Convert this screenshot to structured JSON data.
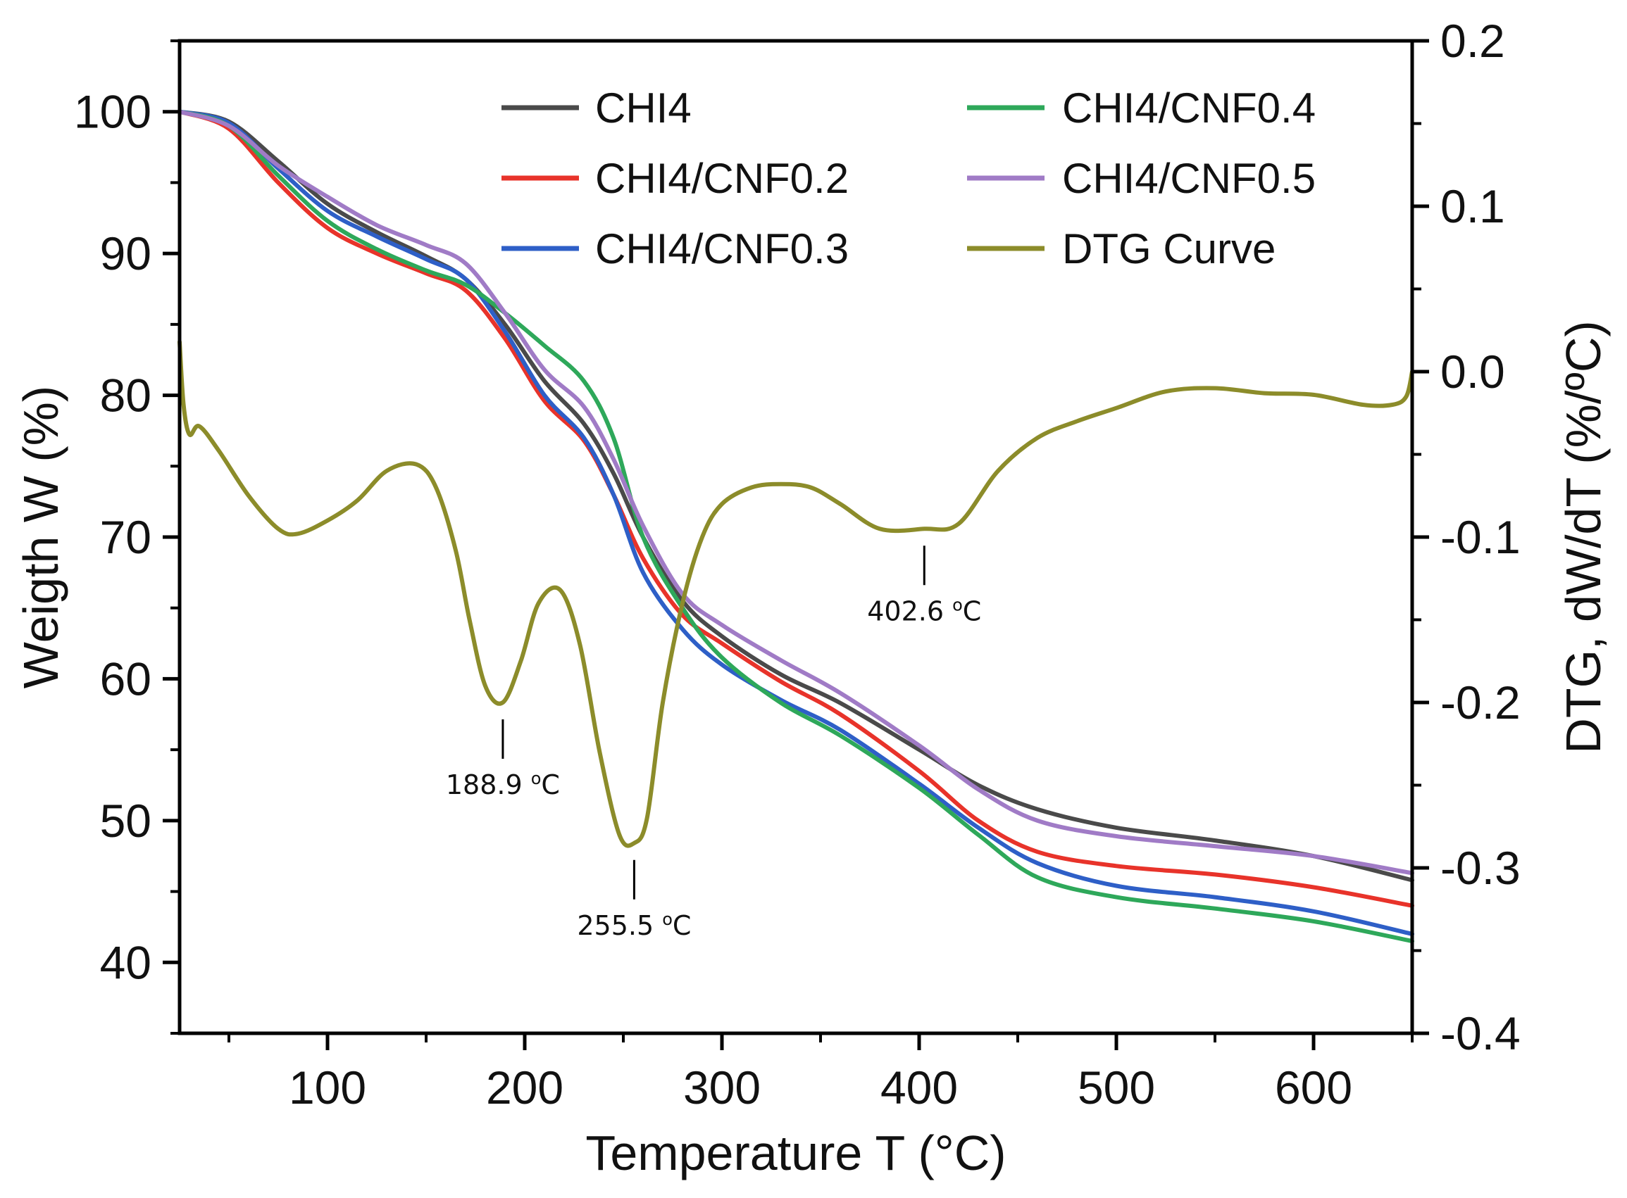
{
  "chart_data": {
    "type": "line",
    "title": "",
    "xlabel": "Temperature T (°C)",
    "ylabel_left": "Weigth W (%)",
    "ylabel_right": "DTG, dW/dT (%/ºC)",
    "xlim": [
      25,
      650
    ],
    "ylim_left": [
      35,
      105
    ],
    "ylim_right": [
      -0.4,
      0.2
    ],
    "xticks": [
      100,
      200,
      300,
      400,
      500,
      600
    ],
    "xtick_labels": [
      "100",
      "200",
      "300",
      "400",
      "500",
      "600"
    ],
    "yticks_left": [
      40,
      50,
      60,
      70,
      80,
      90,
      100
    ],
    "ytick_labels_left": [
      "40",
      "50",
      "60",
      "70",
      "80",
      "90",
      "100"
    ],
    "yticks_right": [
      -0.4,
      -0.3,
      -0.2,
      -0.1,
      0.0,
      0.1,
      0.2
    ],
    "ytick_labels_right": [
      "-0.4",
      "-0.3",
      "-0.2",
      "-0.1",
      "0.0",
      "0.1",
      "0.2"
    ],
    "grid": false,
    "legend_position": "top",
    "series": [
      {
        "name": "CHI4",
        "color": "#4a4a4a",
        "axis": "left",
        "x": [
          25,
          50,
          75,
          100,
          125,
          150,
          170,
          190,
          210,
          230,
          245,
          260,
          280,
          300,
          330,
          360,
          400,
          430,
          460,
          500,
          550,
          600,
          650
        ],
        "y": [
          100,
          99.3,
          96.5,
          93.5,
          91.5,
          89.8,
          88.2,
          85.0,
          81.0,
          78.0,
          74.5,
          70.0,
          65.5,
          63.0,
          60.3,
          58.3,
          55.0,
          52.5,
          50.8,
          49.5,
          48.6,
          47.5,
          45.8
        ]
      },
      {
        "name": "CHI4/CNF0.2",
        "color": "#e8332a",
        "axis": "left",
        "x": [
          25,
          50,
          75,
          100,
          125,
          150,
          170,
          190,
          210,
          230,
          245,
          260,
          280,
          300,
          330,
          360,
          400,
          430,
          460,
          500,
          550,
          600,
          650
        ],
        "y": [
          100,
          98.8,
          95.0,
          91.8,
          90.0,
          88.6,
          87.4,
          84.0,
          79.6,
          76.8,
          73.0,
          68.5,
          64.5,
          62.5,
          59.8,
          57.5,
          53.5,
          50.0,
          47.8,
          46.8,
          46.2,
          45.3,
          44.0
        ]
      },
      {
        "name": "CHI4/CNF0.3",
        "color": "#2e5fc7",
        "axis": "left",
        "x": [
          25,
          50,
          75,
          100,
          125,
          150,
          170,
          190,
          210,
          230,
          245,
          260,
          280,
          300,
          330,
          360,
          400,
          430,
          460,
          500,
          550,
          600,
          650
        ],
        "y": [
          100,
          99.2,
          96.0,
          93.0,
          91.2,
          89.6,
          88.2,
          84.5,
          80.0,
          77.0,
          73.0,
          67.5,
          63.5,
          61.0,
          58.5,
          56.4,
          52.6,
          49.5,
          47.0,
          45.4,
          44.6,
          43.6,
          42.0
        ]
      },
      {
        "name": "CHI4/CNF0.4",
        "color": "#2ea85a",
        "axis": "left",
        "x": [
          25,
          50,
          75,
          100,
          125,
          150,
          170,
          190,
          210,
          230,
          245,
          260,
          280,
          300,
          330,
          360,
          400,
          430,
          460,
          500,
          550,
          600,
          650
        ],
        "y": [
          100,
          99.0,
          95.5,
          92.3,
          90.3,
          88.8,
          87.8,
          85.8,
          83.5,
          81.0,
          77.0,
          70.0,
          65.0,
          61.5,
          58.3,
          56.0,
          52.3,
          49.0,
          46.0,
          44.6,
          43.8,
          42.9,
          41.5
        ]
      },
      {
        "name": "CHI4/CNF0.5",
        "color": "#a07bc6",
        "axis": "left",
        "x": [
          25,
          50,
          75,
          100,
          125,
          150,
          170,
          190,
          210,
          230,
          245,
          260,
          280,
          300,
          330,
          360,
          400,
          430,
          460,
          500,
          550,
          600,
          650
        ],
        "y": [
          100,
          99.0,
          96.2,
          94.0,
          92.0,
          90.6,
          89.3,
          85.8,
          81.8,
          79.2,
          75.5,
          70.8,
          66.0,
          63.8,
          61.3,
          59.0,
          55.3,
          52.2,
          50.0,
          48.9,
          48.2,
          47.5,
          46.3
        ]
      },
      {
        "name": "DTG Curve",
        "color": "#8c8c2a",
        "axis": "right",
        "x": [
          25,
          27,
          30,
          35,
          45,
          60,
          75,
          85,
          100,
          115,
          130,
          145,
          155,
          165,
          172,
          180,
          188.9,
          198,
          207,
          218,
          228,
          238,
          248,
          255.5,
          262,
          270,
          280,
          290,
          300,
          315,
          330,
          345,
          360,
          380,
          402.6,
          420,
          440,
          460,
          480,
          500,
          525,
          550,
          575,
          600,
          625,
          640,
          647,
          650
        ],
        "y": [
          0.018,
          -0.02,
          -0.038,
          -0.033,
          -0.048,
          -0.075,
          -0.095,
          -0.098,
          -0.09,
          -0.078,
          -0.06,
          -0.056,
          -0.07,
          -0.108,
          -0.15,
          -0.19,
          -0.2,
          -0.175,
          -0.14,
          -0.132,
          -0.165,
          -0.23,
          -0.28,
          -0.285,
          -0.27,
          -0.2,
          -0.14,
          -0.1,
          -0.08,
          -0.07,
          -0.068,
          -0.07,
          -0.08,
          -0.095,
          -0.095,
          -0.092,
          -0.06,
          -0.04,
          -0.03,
          -0.022,
          -0.012,
          -0.01,
          -0.013,
          -0.014,
          -0.02,
          -0.02,
          -0.015,
          0.0
        ]
      }
    ],
    "annotations": [
      {
        "x": 188.9,
        "y": -0.2,
        "value": "188.9",
        "unit_sup": "o",
        "unit": "C"
      },
      {
        "x": 255.5,
        "y": -0.285,
        "value": "255.5",
        "unit_sup": "o",
        "unit": "C"
      },
      {
        "x": 402.6,
        "y": -0.095,
        "value": "402.6",
        "unit_sup": "o",
        "unit": "C"
      }
    ]
  }
}
